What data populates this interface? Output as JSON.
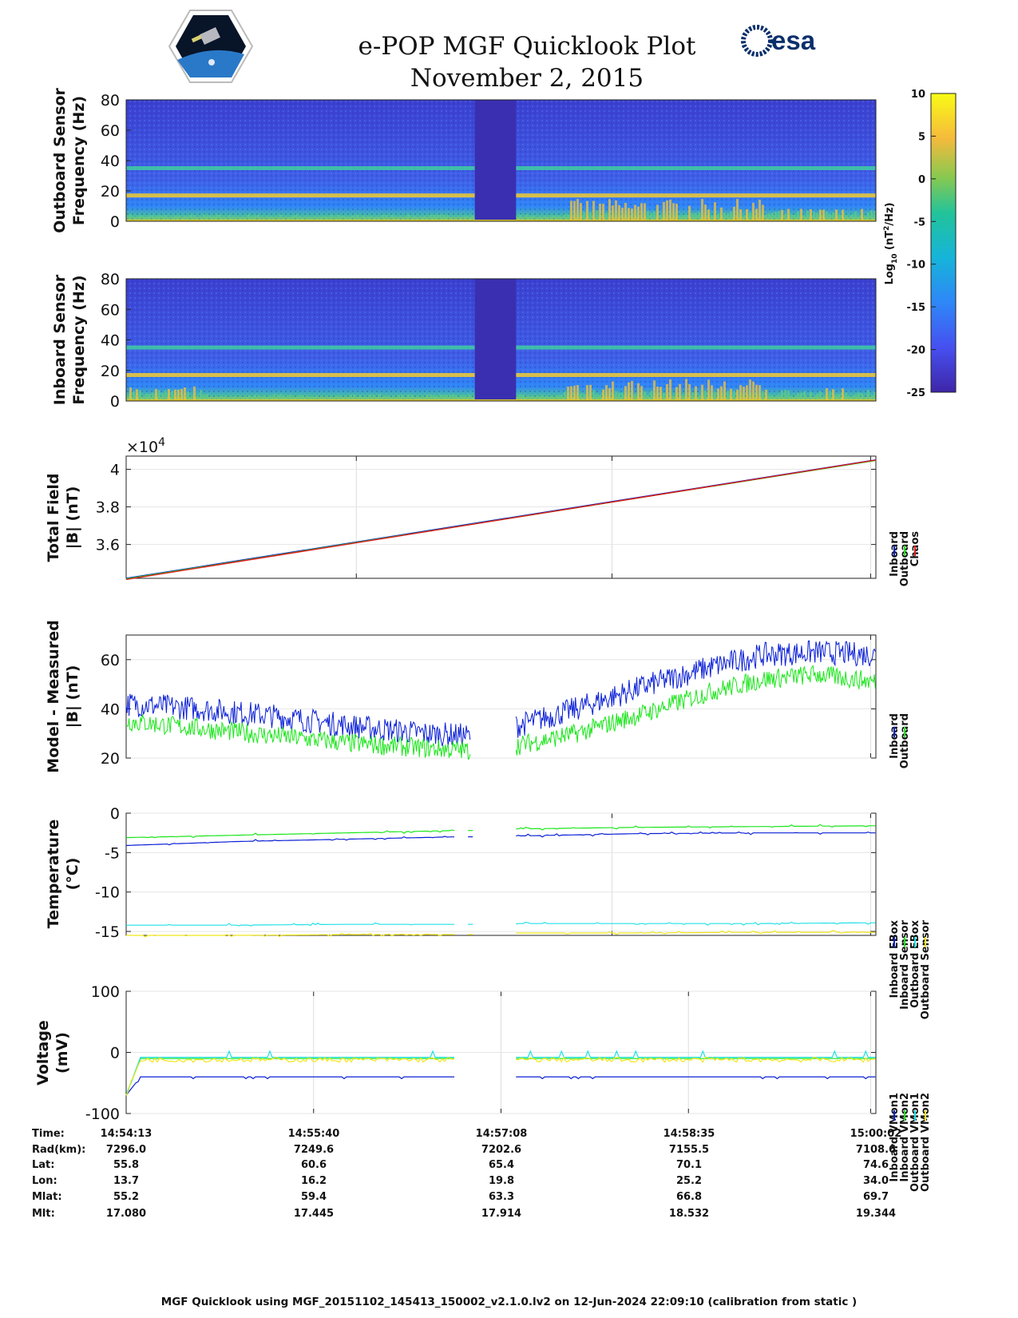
{
  "title": "e-POP MGF Quicklook Plot",
  "subtitle": "November 2, 2015",
  "footer": "MGF Quicklook using MGF_20151102_145413_150002_v2.1.0.lv2 on 12-Jun-2024 22:09:10 (calibration from static )",
  "colors": {
    "inboard": "#0a1fd6",
    "outboard": "#19e619",
    "chaos": "#e01a1a",
    "cyan": "#22e0e6",
    "yellow": "#f2e619"
  },
  "chart_data": [
    {
      "type": "heatmap",
      "ylabel": [
        "Outboard Sensor",
        "Frequency (Hz)"
      ],
      "ylim": [
        0,
        80
      ],
      "yticks": [
        0,
        20,
        40,
        60,
        80
      ],
      "bands_hz": [
        17,
        35
      ],
      "gap_x_fraction": [
        0.465,
        0.52
      ]
    },
    {
      "type": "heatmap",
      "ylabel": [
        "Inboard Sensor",
        "Frequency (Hz)"
      ],
      "ylim": [
        0,
        80
      ],
      "yticks": [
        0,
        20,
        40,
        60,
        80
      ],
      "bands_hz": [
        17,
        35
      ],
      "gap_x_fraction": [
        0.465,
        0.52
      ]
    },
    {
      "type": "line",
      "ylabel": [
        "Total Field",
        "|B| (nT)"
      ],
      "exponent": "×10",
      "exponent_power": "4",
      "ylim": [
        3.42,
        4.07
      ],
      "yticks": [
        3.6,
        3.8,
        4
      ],
      "ytick_labels": [
        "3.6",
        "3.8",
        "4"
      ],
      "series": [
        {
          "name": "Inboard",
          "color": "#0a1fd6",
          "values": [
            3.42,
            4.05
          ]
        },
        {
          "name": "Outboard",
          "color": "#19e619",
          "values": [
            3.42,
            4.05
          ]
        },
        {
          "name": "Chaos",
          "color": "#e01a1a",
          "values": [
            3.42,
            4.055
          ]
        }
      ]
    },
    {
      "type": "line",
      "ylabel": [
        "Model - Measured",
        "|B| (nT)"
      ],
      "ylim": [
        20,
        70
      ],
      "yticks": [
        20,
        40,
        60
      ],
      "series": [
        {
          "name": "Inboard",
          "color": "#0a1fd6",
          "x": [
            0,
            0.1,
            0.2,
            0.3,
            0.4,
            0.46
          ],
          "values": [
            42,
            40,
            37,
            33,
            30,
            29
          ],
          "x2": [
            0.52,
            0.6,
            0.7,
            0.78,
            0.85,
            0.92,
            1.0
          ],
          "values2": [
            33,
            40,
            50,
            57,
            62,
            63,
            62
          ]
        },
        {
          "name": "Outboard",
          "color": "#19e619",
          "x": [
            0,
            0.1,
            0.2,
            0.3,
            0.4,
            0.46
          ],
          "values": [
            35,
            32,
            29,
            26,
            24,
            23
          ],
          "x2": [
            0.52,
            0.6,
            0.7,
            0.78,
            0.85,
            0.92,
            1.0
          ],
          "values2": [
            25,
            30,
            39,
            47,
            52,
            54,
            51
          ]
        }
      ]
    },
    {
      "type": "line",
      "ylabel": [
        "Temperature",
        "(°C)"
      ],
      "ylim": [
        -15.5,
        0
      ],
      "yticks": [
        -15,
        -10,
        -5,
        0
      ],
      "series": [
        {
          "name": "Inboard EBox",
          "color": "#0a1fd6",
          "values": [
            -4.1,
            -3.6,
            -3.3,
            -3.0
          ],
          "values2": [
            -2.9,
            -2.6,
            -2.5,
            -2.5
          ]
        },
        {
          "name": "Inboard Sensor",
          "color": "#19e619",
          "values": [
            -3.1,
            -2.8,
            -2.5,
            -2.2
          ],
          "values2": [
            -2.0,
            -1.8,
            -1.7,
            -1.6
          ]
        },
        {
          "name": "Outboard EBox",
          "color": "#22e0e6",
          "values": [
            -14.2,
            -14.2,
            -14.1,
            -14.1
          ],
          "values2": [
            -14.0,
            -14.0,
            -14.0,
            -13.9
          ]
        },
        {
          "name": "Outboard Sensor",
          "color": "#f2e619",
          "values": [
            -15.5,
            -15.5,
            -15.4,
            -15.4
          ],
          "values2": [
            -15.2,
            -15.2,
            -15.1,
            -15.1
          ]
        }
      ]
    },
    {
      "type": "line",
      "ylabel": [
        "Voltage",
        "(mV)"
      ],
      "ylim": [
        -100,
        100
      ],
      "yticks": [
        -100,
        0,
        100
      ],
      "series": [
        {
          "name": "Inboard VMon1",
          "color": "#0a1fd6",
          "values": [
            -40
          ]
        },
        {
          "name": "Inboard VMon2",
          "color": "#19e619",
          "values": [
            -10
          ]
        },
        {
          "name": "Outboard VMon1",
          "color": "#22e0e6",
          "values": [
            -8
          ]
        },
        {
          "name": "Outboard VMon2",
          "color": "#f2e619",
          "values": [
            -12
          ]
        }
      ]
    }
  ],
  "colorbar": {
    "label": "Log",
    "label_sub": "10",
    "label_rest": " (nT",
    "label_sup": "2",
    "label_end": "/Hz)",
    "ticks": [
      "10",
      "5",
      "0",
      "-5",
      "-10",
      "-15",
      "-20",
      "-25"
    ],
    "range": [
      -25,
      10
    ]
  },
  "ephemeris": {
    "labels": [
      "Time:",
      "Rad(km):",
      "Lat:",
      "Lon:",
      "Mlat:",
      "Mlt:"
    ],
    "columns": [
      [
        "14:54:13",
        "7296.0",
        "55.8",
        "13.7",
        "55.2",
        "17.080"
      ],
      [
        "14:55:40",
        "7249.6",
        "60.6",
        "16.2",
        "59.4",
        "17.445"
      ],
      [
        "14:57:08",
        "7202.6",
        "65.4",
        "19.8",
        "63.3",
        "17.914"
      ],
      [
        "14:58:35",
        "7155.5",
        "70.1",
        "25.2",
        "66.8",
        "18.532"
      ],
      [
        "15:00:02",
        "7108.6",
        "74.6",
        "34.0",
        "69.7",
        "19.344"
      ]
    ]
  },
  "logos": {
    "esa_text": "esa"
  }
}
